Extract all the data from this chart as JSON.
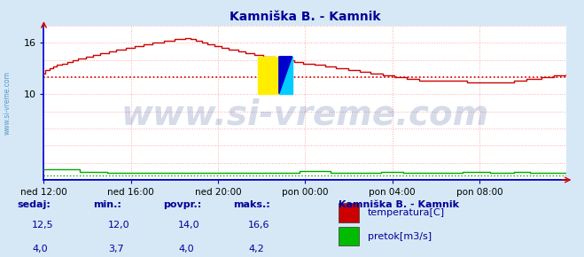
{
  "title": "Kamniška B. - Kamnik",
  "bg_color": "#d6e8f5",
  "plot_bg_color": "#ffffff",
  "grid_color": "#ffaaaa",
  "axis_color": "#0000cc",
  "xlim": [
    0,
    288
  ],
  "ylim": [
    0,
    18
  ],
  "ytick_positions": [
    10,
    16
  ],
  "ytick_labels": [
    "10",
    "16"
  ],
  "xtick_positions": [
    0,
    48,
    96,
    144,
    192,
    240
  ],
  "xtick_labels": [
    "ned 12:00",
    "ned 16:00",
    "ned 20:00",
    "pon 00:00",
    "pon 04:00",
    "pon 08:00"
  ],
  "temp_color": "#cc0000",
  "flow_color": "#00aa00",
  "flow_base_color": "#0000bb",
  "avg_temp_line_y": 12.0,
  "avg_flow_line_y": 0.5,
  "watermark": "www.si-vreme.com",
  "watermark_color": "#1a3a8a",
  "watermark_alpha": 0.18,
  "watermark_fontsize": 28,
  "legend_title": "Kamniška B. - Kamnik",
  "legend_items": [
    "temperatura[C]",
    "pretok[m3/s]"
  ],
  "legend_colors": [
    "#cc0000",
    "#00bb00"
  ],
  "stats_labels": [
    "sedaj:",
    "min.:",
    "povpr.:",
    "maks.:"
  ],
  "stats_temp": [
    "12,5",
    "12,0",
    "14,0",
    "16,6"
  ],
  "stats_flow": [
    "4,0",
    "3,7",
    "4,0",
    "4,2"
  ],
  "stats_color": "#000099",
  "sidebar_text": "www.si-vreme.com",
  "sidebar_color": "#5599cc"
}
